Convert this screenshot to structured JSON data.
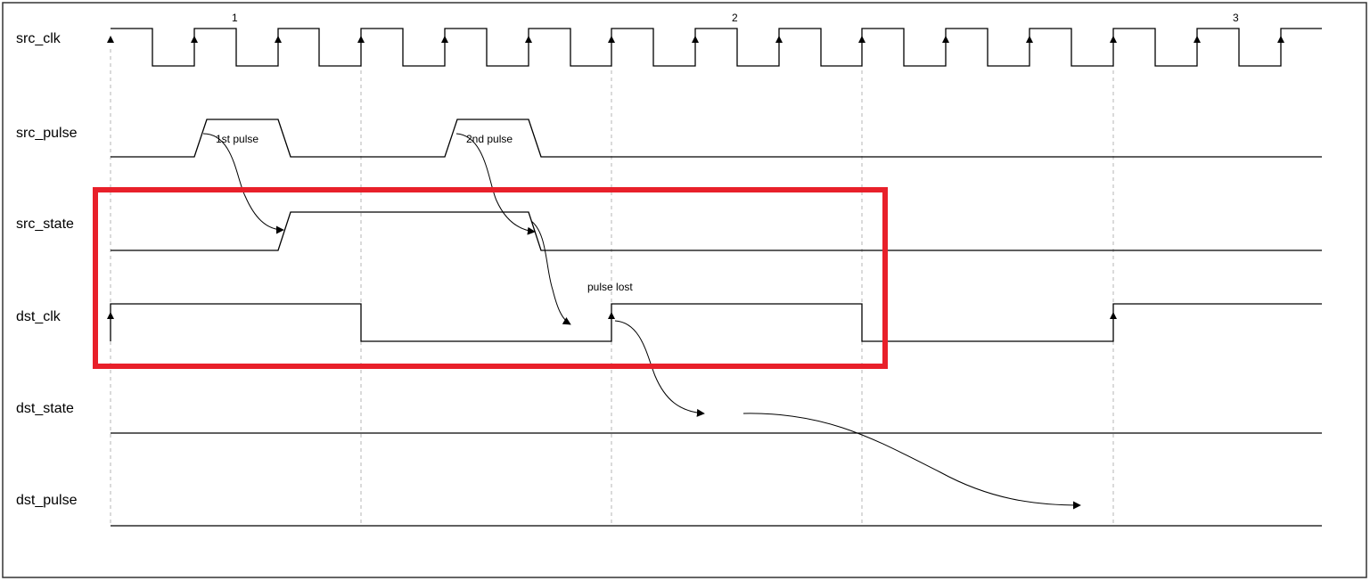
{
  "signals": [
    {
      "name": "src_clk"
    },
    {
      "name": "src_pulse"
    },
    {
      "name": "src_state"
    },
    {
      "name": "dst_clk"
    },
    {
      "name": "dst_state"
    },
    {
      "name": "dst_pulse"
    }
  ],
  "cycle_markers": [
    "1",
    "2",
    "3"
  ],
  "annotations": {
    "first_pulse": "1st pulse",
    "second_pulse": "2nd pulse",
    "pulse_lost": "pulse lost"
  },
  "colors": {
    "highlight_box": "#e8202a",
    "waveform": "#000000",
    "guide_lines": "#b5b5b5",
    "frame_border": "#333333"
  }
}
